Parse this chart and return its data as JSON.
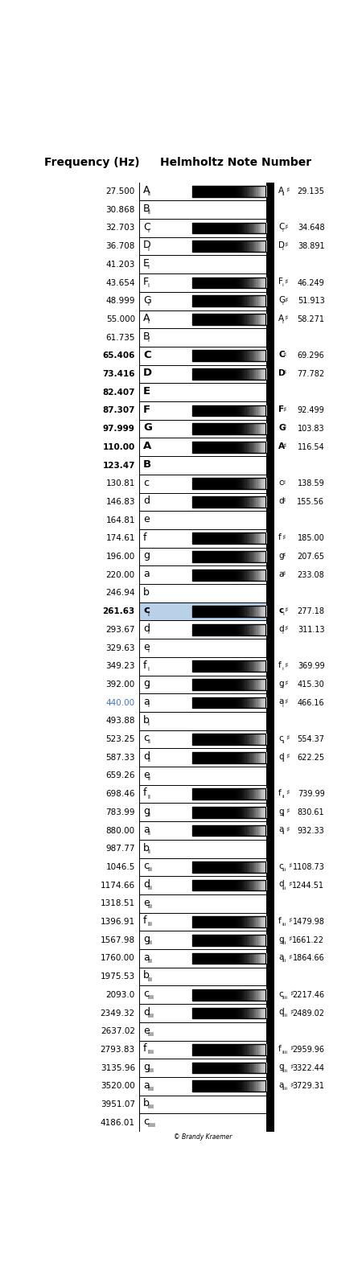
{
  "title_left": "Frequency (Hz)",
  "title_right": "Helmholtz Note Number",
  "notes": [
    {
      "freq": "27.500",
      "label": "A",
      "sub": "ii",
      "has_black": true,
      "sharp_note": "A",
      "sharp_sub": "ii",
      "sharp_freq": "29.135",
      "bold": false,
      "freq_bold": false,
      "color": "black"
    },
    {
      "freq": "30.868",
      "label": "B",
      "sub": "ii",
      "has_black": false,
      "sharp_note": "",
      "sharp_sub": "",
      "sharp_freq": "",
      "bold": false,
      "freq_bold": false,
      "color": "black"
    },
    {
      "freq": "32.703",
      "label": "C",
      "sub": "i",
      "has_black": true,
      "sharp_note": "C",
      "sharp_sub": "i",
      "sharp_freq": "34.648",
      "bold": false,
      "freq_bold": false,
      "color": "black"
    },
    {
      "freq": "36.708",
      "label": "D",
      "sub": "i",
      "has_black": true,
      "sharp_note": "D",
      "sharp_sub": "i",
      "sharp_freq": "38.891",
      "bold": false,
      "freq_bold": false,
      "color": "black"
    },
    {
      "freq": "41.203",
      "label": "E",
      "sub": "i",
      "has_black": false,
      "sharp_note": "",
      "sharp_sub": "",
      "sharp_freq": "",
      "bold": false,
      "freq_bold": false,
      "color": "black"
    },
    {
      "freq": "43.654",
      "label": "F",
      "sub": "i",
      "has_black": true,
      "sharp_note": "F",
      "sharp_sub": "i",
      "sharp_freq": "46.249",
      "bold": false,
      "freq_bold": false,
      "color": "black"
    },
    {
      "freq": "48.999",
      "label": "G",
      "sub": "i",
      "has_black": true,
      "sharp_note": "G",
      "sharp_sub": "i",
      "sharp_freq": "51.913",
      "bold": false,
      "freq_bold": false,
      "color": "black"
    },
    {
      "freq": "55.000",
      "label": "A",
      "sub": "i",
      "has_black": true,
      "sharp_note": "A",
      "sharp_sub": "i",
      "sharp_freq": "58.271",
      "bold": false,
      "freq_bold": false,
      "color": "black"
    },
    {
      "freq": "61.735",
      "label": "B",
      "sub": "i",
      "has_black": false,
      "sharp_note": "",
      "sharp_sub": "",
      "sharp_freq": "",
      "bold": false,
      "freq_bold": false,
      "color": "black"
    },
    {
      "freq": "65.406",
      "label": "C",
      "sub": "",
      "has_black": true,
      "sharp_note": "C",
      "sharp_sub": "",
      "sharp_freq": "69.296",
      "bold": true,
      "freq_bold": true,
      "color": "black"
    },
    {
      "freq": "73.416",
      "label": "D",
      "sub": "",
      "has_black": true,
      "sharp_note": "D",
      "sharp_sub": "",
      "sharp_freq": "77.782",
      "bold": true,
      "freq_bold": true,
      "color": "black"
    },
    {
      "freq": "82.407",
      "label": "E",
      "sub": "",
      "has_black": false,
      "sharp_note": "",
      "sharp_sub": "",
      "sharp_freq": "",
      "bold": true,
      "freq_bold": true,
      "color": "black"
    },
    {
      "freq": "87.307",
      "label": "F",
      "sub": "",
      "has_black": true,
      "sharp_note": "F",
      "sharp_sub": "",
      "sharp_freq": "92.499",
      "bold": true,
      "freq_bold": true,
      "color": "black"
    },
    {
      "freq": "97.999",
      "label": "G",
      "sub": "",
      "has_black": true,
      "sharp_note": "G",
      "sharp_sub": "",
      "sharp_freq": "103.83",
      "bold": true,
      "freq_bold": true,
      "color": "black"
    },
    {
      "freq": "110.00",
      "label": "A",
      "sub": "",
      "has_black": true,
      "sharp_note": "A",
      "sharp_sub": "",
      "sharp_freq": "116.54",
      "bold": true,
      "freq_bold": true,
      "color": "black"
    },
    {
      "freq": "123.47",
      "label": "B",
      "sub": "",
      "has_black": false,
      "sharp_note": "",
      "sharp_sub": "",
      "sharp_freq": "",
      "bold": true,
      "freq_bold": true,
      "color": "black"
    },
    {
      "freq": "130.81",
      "label": "c",
      "sub": "",
      "has_black": true,
      "sharp_note": "c",
      "sharp_sub": "",
      "sharp_freq": "138.59",
      "bold": false,
      "freq_bold": false,
      "color": "black"
    },
    {
      "freq": "146.83",
      "label": "d",
      "sub": "",
      "has_black": true,
      "sharp_note": "d",
      "sharp_sub": "",
      "sharp_freq": "155.56",
      "bold": false,
      "freq_bold": false,
      "color": "black"
    },
    {
      "freq": "164.81",
      "label": "e",
      "sub": "",
      "has_black": false,
      "sharp_note": "",
      "sharp_sub": "",
      "sharp_freq": "",
      "bold": false,
      "freq_bold": false,
      "color": "black"
    },
    {
      "freq": "174.61",
      "label": "f",
      "sub": "",
      "has_black": true,
      "sharp_note": "f",
      "sharp_sub": "",
      "sharp_freq": "185.00",
      "bold": false,
      "freq_bold": false,
      "color": "black"
    },
    {
      "freq": "196.00",
      "label": "g",
      "sub": "",
      "has_black": true,
      "sharp_note": "g",
      "sharp_sub": "",
      "sharp_freq": "207.65",
      "bold": false,
      "freq_bold": false,
      "color": "black"
    },
    {
      "freq": "220.00",
      "label": "a",
      "sub": "",
      "has_black": true,
      "sharp_note": "a",
      "sharp_sub": "",
      "sharp_freq": "233.08",
      "bold": false,
      "freq_bold": false,
      "color": "black"
    },
    {
      "freq": "246.94",
      "label": "b",
      "sub": "",
      "has_black": false,
      "sharp_note": "",
      "sharp_sub": "",
      "sharp_freq": "",
      "bold": false,
      "freq_bold": false,
      "color": "black"
    },
    {
      "freq": "261.63",
      "label": "c",
      "sub": "i",
      "has_black": true,
      "sharp_note": "c",
      "sharp_sub": "i",
      "sharp_freq": "277.18",
      "bold": true,
      "freq_bold": true,
      "color": "black",
      "highlight": true
    },
    {
      "freq": "293.67",
      "label": "d",
      "sub": "i",
      "has_black": true,
      "sharp_note": "d",
      "sharp_sub": "i",
      "sharp_freq": "311.13",
      "bold": false,
      "freq_bold": false,
      "color": "black"
    },
    {
      "freq": "329.63",
      "label": "e",
      "sub": "i",
      "has_black": false,
      "sharp_note": "",
      "sharp_sub": "",
      "sharp_freq": "",
      "bold": false,
      "freq_bold": false,
      "color": "black"
    },
    {
      "freq": "349.23",
      "label": "f",
      "sub": "i",
      "has_black": true,
      "sharp_note": "f",
      "sharp_sub": "i",
      "sharp_freq": "369.99",
      "bold": false,
      "freq_bold": false,
      "color": "black"
    },
    {
      "freq": "392.00",
      "label": "g",
      "sub": "i",
      "has_black": true,
      "sharp_note": "g",
      "sharp_sub": "i",
      "sharp_freq": "415.30",
      "bold": false,
      "freq_bold": false,
      "color": "black"
    },
    {
      "freq": "440.00",
      "label": "a",
      "sub": "i",
      "has_black": true,
      "sharp_note": "a",
      "sharp_sub": "i",
      "sharp_freq": "466.16",
      "bold": false,
      "freq_bold": false,
      "color": "#4472c4"
    },
    {
      "freq": "493.88",
      "label": "b",
      "sub": "i",
      "has_black": false,
      "sharp_note": "",
      "sharp_sub": "",
      "sharp_freq": "",
      "bold": false,
      "freq_bold": false,
      "color": "black"
    },
    {
      "freq": "523.25",
      "label": "c",
      "sub": "ii",
      "has_black": true,
      "sharp_note": "c",
      "sharp_sub": "ii",
      "sharp_freq": "554.37",
      "bold": false,
      "freq_bold": false,
      "color": "black"
    },
    {
      "freq": "587.33",
      "label": "d",
      "sub": "ii",
      "has_black": true,
      "sharp_note": "d",
      "sharp_sub": "ii",
      "sharp_freq": "622.25",
      "bold": false,
      "freq_bold": false,
      "color": "black"
    },
    {
      "freq": "659.26",
      "label": "e",
      "sub": "ii",
      "has_black": false,
      "sharp_note": "",
      "sharp_sub": "",
      "sharp_freq": "",
      "bold": false,
      "freq_bold": false,
      "color": "black"
    },
    {
      "freq": "698.46",
      "label": "f",
      "sub": "ii",
      "has_black": true,
      "sharp_note": "f",
      "sharp_sub": "ii",
      "sharp_freq": "739.99",
      "bold": false,
      "freq_bold": false,
      "color": "black"
    },
    {
      "freq": "783.99",
      "label": "g",
      "sub": "ii",
      "has_black": true,
      "sharp_note": "g",
      "sharp_sub": "ii",
      "sharp_freq": "830.61",
      "bold": false,
      "freq_bold": false,
      "color": "black"
    },
    {
      "freq": "880.00",
      "label": "a",
      "sub": "ii",
      "has_black": true,
      "sharp_note": "a",
      "sharp_sub": "ii",
      "sharp_freq": "932.33",
      "bold": false,
      "freq_bold": false,
      "color": "black"
    },
    {
      "freq": "987.77",
      "label": "b",
      "sub": "ii",
      "has_black": false,
      "sharp_note": "",
      "sharp_sub": "",
      "sharp_freq": "",
      "bold": false,
      "freq_bold": false,
      "color": "black"
    },
    {
      "freq": "1046.5",
      "label": "c",
      "sub": "iii",
      "has_black": true,
      "sharp_note": "c",
      "sharp_sub": "iii",
      "sharp_freq": "1108.73",
      "bold": false,
      "freq_bold": false,
      "color": "black"
    },
    {
      "freq": "1174.66",
      "label": "d",
      "sub": "iii",
      "has_black": true,
      "sharp_note": "d",
      "sharp_sub": "iii",
      "sharp_freq": "1244.51",
      "bold": false,
      "freq_bold": false,
      "color": "black"
    },
    {
      "freq": "1318.51",
      "label": "e",
      "sub": "iii",
      "has_black": false,
      "sharp_note": "",
      "sharp_sub": "",
      "sharp_freq": "",
      "bold": false,
      "freq_bold": false,
      "color": "black"
    },
    {
      "freq": "1396.91",
      "label": "f",
      "sub": "iii",
      "has_black": true,
      "sharp_note": "f",
      "sharp_sub": "iii",
      "sharp_freq": "1479.98",
      "bold": false,
      "freq_bold": false,
      "color": "black"
    },
    {
      "freq": "1567.98",
      "label": "g",
      "sub": "iii",
      "has_black": true,
      "sharp_note": "g",
      "sharp_sub": "iii",
      "sharp_freq": "1661.22",
      "bold": false,
      "freq_bold": false,
      "color": "black"
    },
    {
      "freq": "1760.00",
      "label": "a",
      "sub": "iii",
      "has_black": true,
      "sharp_note": "a",
      "sharp_sub": "iii",
      "sharp_freq": "1864.66",
      "bold": false,
      "freq_bold": false,
      "color": "black"
    },
    {
      "freq": "1975.53",
      "label": "b",
      "sub": "iii",
      "has_black": false,
      "sharp_note": "",
      "sharp_sub": "",
      "sharp_freq": "",
      "bold": false,
      "freq_bold": false,
      "color": "black"
    },
    {
      "freq": "2093.0",
      "label": "c",
      "sub": "iiii",
      "has_black": true,
      "sharp_note": "c",
      "sharp_sub": "iiii",
      "sharp_freq": "2217.46",
      "bold": false,
      "freq_bold": false,
      "color": "black"
    },
    {
      "freq": "2349.32",
      "label": "d",
      "sub": "iiii",
      "has_black": true,
      "sharp_note": "d",
      "sharp_sub": "iiii",
      "sharp_freq": "2489.02",
      "bold": false,
      "freq_bold": false,
      "color": "black"
    },
    {
      "freq": "2637.02",
      "label": "e",
      "sub": "iiii",
      "has_black": false,
      "sharp_note": "",
      "sharp_sub": "",
      "sharp_freq": "",
      "bold": false,
      "freq_bold": false,
      "color": "black"
    },
    {
      "freq": "2793.83",
      "label": "f",
      "sub": "iiii",
      "has_black": true,
      "sharp_note": "f",
      "sharp_sub": "iiii",
      "sharp_freq": "2959.96",
      "bold": false,
      "freq_bold": false,
      "color": "black"
    },
    {
      "freq": "3135.96",
      "label": "g",
      "sub": "iiii",
      "has_black": true,
      "sharp_note": "g",
      "sharp_sub": "iiii",
      "sharp_freq": "3322.44",
      "bold": false,
      "freq_bold": false,
      "color": "black"
    },
    {
      "freq": "3520.00",
      "label": "a",
      "sub": "iiii",
      "has_black": true,
      "sharp_note": "a",
      "sharp_sub": "iiii",
      "sharp_freq": "3729.31",
      "bold": false,
      "freq_bold": false,
      "color": "black"
    },
    {
      "freq": "3951.07",
      "label": "b",
      "sub": "iiii",
      "has_black": false,
      "sharp_note": "",
      "sharp_sub": "",
      "sharp_freq": "",
      "bold": false,
      "freq_bold": false,
      "color": "black"
    },
    {
      "freq": "4186.01",
      "label": "c",
      "sub": "iiiii",
      "has_black": false,
      "sharp_note": "",
      "sharp_sub": "",
      "sharp_freq": "",
      "bold": false,
      "freq_bold": false,
      "color": "black"
    }
  ],
  "copyright": "© Brandy Kraemer"
}
